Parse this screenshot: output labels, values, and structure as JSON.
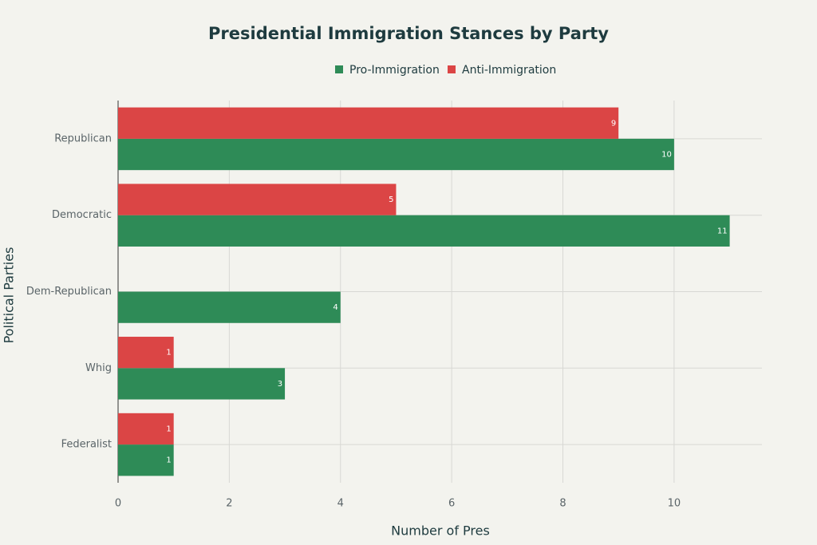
{
  "chart_data": {
    "type": "hbar",
    "title": "Presidential Immigration Stances by Party",
    "x_label": "Number of Pres",
    "y_label": "Political Parties",
    "categories": [
      "Republican",
      "Democratic",
      "Dem-Republican",
      "Whig",
      "Federalist"
    ],
    "series": [
      {
        "name": "Pro-Immigration",
        "color": "#2e8b57",
        "values": [
          10,
          11,
          4,
          3,
          1
        ]
      },
      {
        "name": "Anti-Immigration",
        "color": "#db4545",
        "values": [
          9,
          5,
          null,
          1,
          1
        ]
      }
    ],
    "xlim": [
      0,
      11.58
    ],
    "xticks": [
      0,
      2,
      4,
      6,
      8,
      10
    ],
    "grid": true,
    "legend": "top"
  }
}
